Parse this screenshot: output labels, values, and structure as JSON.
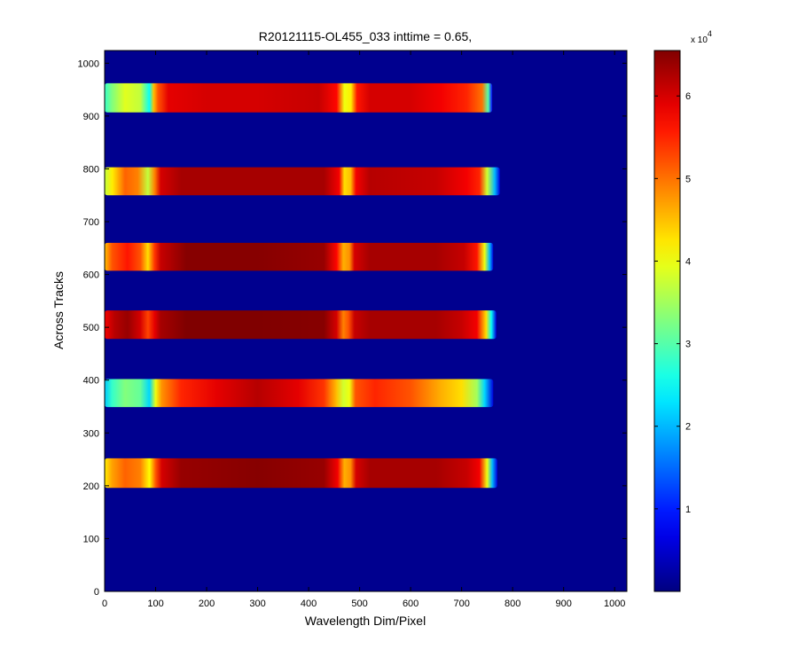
{
  "chart_data": {
    "type": "heatmap",
    "title": "R20121115-OL455_033 inttime = 0.65,",
    "xlabel": "Wavelength Dim/Pixel",
    "ylabel": "Across Tracks",
    "xlim": [
      0,
      1024
    ],
    "ylim": [
      0,
      1024
    ],
    "x_ticks": [
      0,
      100,
      200,
      300,
      400,
      500,
      600,
      700,
      800,
      900,
      1000
    ],
    "y_ticks": [
      0,
      100,
      200,
      300,
      400,
      500,
      600,
      700,
      800,
      900,
      1000
    ],
    "background_value": 0,
    "colorbar": {
      "colormap": "jet",
      "range": [
        0,
        65500
      ],
      "ticks": [
        1,
        2,
        3,
        4,
        5,
        6
      ],
      "multiplier_base": "x 10",
      "multiplier_exp": "4",
      "scale": 10000
    },
    "bands": [
      {
        "y_range": [
          907,
          962
        ],
        "x_range": [
          0,
          760
        ],
        "profile": [
          [
            0,
            28000
          ],
          [
            15,
            33000
          ],
          [
            40,
            39000
          ],
          [
            70,
            37000
          ],
          [
            88,
            25000
          ],
          [
            96,
            45000
          ],
          [
            105,
            52000
          ],
          [
            125,
            59000
          ],
          [
            200,
            60000
          ],
          [
            300,
            60000
          ],
          [
            420,
            61000
          ],
          [
            455,
            57000
          ],
          [
            470,
            40000
          ],
          [
            483,
            42000
          ],
          [
            495,
            56000
          ],
          [
            520,
            60000
          ],
          [
            600,
            60000
          ],
          [
            660,
            58000
          ],
          [
            710,
            55000
          ],
          [
            740,
            50000
          ],
          [
            752,
            30000
          ],
          [
            760,
            8000
          ]
        ]
      },
      {
        "y_range": [
          750,
          803
        ],
        "x_range": [
          0,
          775
        ],
        "profile": [
          [
            0,
            37000
          ],
          [
            15,
            42000
          ],
          [
            40,
            51000
          ],
          [
            65,
            49000
          ],
          [
            85,
            37000
          ],
          [
            98,
            49000
          ],
          [
            110,
            60000
          ],
          [
            150,
            63000
          ],
          [
            300,
            63000
          ],
          [
            430,
            63000
          ],
          [
            460,
            58000
          ],
          [
            470,
            43000
          ],
          [
            482,
            45000
          ],
          [
            493,
            58000
          ],
          [
            520,
            62000
          ],
          [
            650,
            61000
          ],
          [
            710,
            58000
          ],
          [
            735,
            55000
          ],
          [
            750,
            38000
          ],
          [
            765,
            20000
          ],
          [
            775,
            6000
          ]
        ]
      },
      {
        "y_range": [
          607,
          660
        ],
        "x_range": [
          0,
          762
        ],
        "profile": [
          [
            0,
            45000
          ],
          [
            15,
            52000
          ],
          [
            45,
            56000
          ],
          [
            70,
            52000
          ],
          [
            85,
            43000
          ],
          [
            98,
            54000
          ],
          [
            110,
            61000
          ],
          [
            160,
            65000
          ],
          [
            300,
            65000
          ],
          [
            430,
            64000
          ],
          [
            455,
            57000
          ],
          [
            468,
            46000
          ],
          [
            480,
            48000
          ],
          [
            490,
            60000
          ],
          [
            520,
            63000
          ],
          [
            650,
            63000
          ],
          [
            705,
            61000
          ],
          [
            730,
            56000
          ],
          [
            745,
            40000
          ],
          [
            755,
            20000
          ],
          [
            762,
            6000
          ]
        ]
      },
      {
        "y_range": [
          478,
          532
        ],
        "x_range": [
          0,
          768
        ],
        "profile": [
          [
            0,
            58000
          ],
          [
            20,
            62000
          ],
          [
            45,
            64000
          ],
          [
            70,
            60000
          ],
          [
            85,
            53000
          ],
          [
            98,
            59000
          ],
          [
            110,
            63000
          ],
          [
            160,
            65500
          ],
          [
            300,
            65500
          ],
          [
            430,
            65000
          ],
          [
            455,
            60000
          ],
          [
            468,
            49000
          ],
          [
            478,
            52000
          ],
          [
            490,
            61000
          ],
          [
            520,
            63000
          ],
          [
            650,
            63000
          ],
          [
            700,
            61000
          ],
          [
            730,
            58000
          ],
          [
            748,
            43000
          ],
          [
            758,
            25000
          ],
          [
            768,
            6000
          ]
        ]
      },
      {
        "y_range": [
          349,
          402
        ],
        "x_range": [
          0,
          762
        ],
        "profile": [
          [
            0,
            21000
          ],
          [
            15,
            28000
          ],
          [
            40,
            33000
          ],
          [
            70,
            31000
          ],
          [
            88,
            22000
          ],
          [
            100,
            40000
          ],
          [
            112,
            48000
          ],
          [
            150,
            55000
          ],
          [
            220,
            59000
          ],
          [
            300,
            62000
          ],
          [
            380,
            59000
          ],
          [
            430,
            54000
          ],
          [
            455,
            45000
          ],
          [
            468,
            38000
          ],
          [
            480,
            40000
          ],
          [
            492,
            52000
          ],
          [
            530,
            55000
          ],
          [
            600,
            52000
          ],
          [
            660,
            46000
          ],
          [
            700,
            43000
          ],
          [
            730,
            35000
          ],
          [
            745,
            22000
          ],
          [
            762,
            6000
          ]
        ]
      },
      {
        "y_range": [
          196,
          252
        ],
        "x_range": [
          0,
          770
        ],
        "profile": [
          [
            0,
            42000
          ],
          [
            15,
            47000
          ],
          [
            40,
            51000
          ],
          [
            70,
            49000
          ],
          [
            88,
            41000
          ],
          [
            100,
            52000
          ],
          [
            112,
            60000
          ],
          [
            150,
            64000
          ],
          [
            300,
            65000
          ],
          [
            430,
            64000
          ],
          [
            457,
            58000
          ],
          [
            470,
            46000
          ],
          [
            482,
            48000
          ],
          [
            493,
            60000
          ],
          [
            520,
            63000
          ],
          [
            650,
            63000
          ],
          [
            710,
            61000
          ],
          [
            735,
            58000
          ],
          [
            750,
            40000
          ],
          [
            760,
            20000
          ],
          [
            770,
            6000
          ]
        ]
      }
    ]
  }
}
